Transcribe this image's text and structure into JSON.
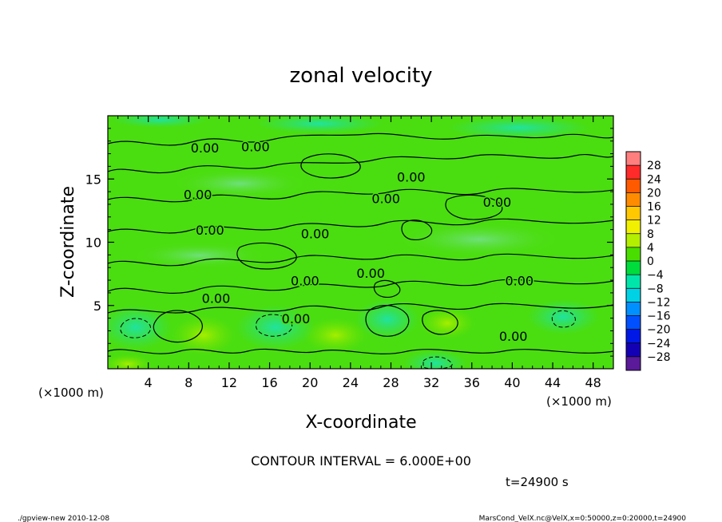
{
  "chart_data": {
    "type": "heatmap",
    "title": "zonal velocity",
    "xlabel": "X-coordinate",
    "ylabel": "Z-coordinate",
    "x_unit_label": "(×1000 m)",
    "y_unit_label": "(×1000 m)",
    "xlim": [
      0,
      50
    ],
    "ylim": [
      0,
      20
    ],
    "x_ticks": [
      4,
      8,
      12,
      16,
      20,
      24,
      28,
      32,
      36,
      40,
      44,
      48
    ],
    "y_ticks": [
      5,
      10,
      15
    ],
    "colorbar": {
      "labels": [
        28,
        24,
        20,
        16,
        12,
        8,
        4,
        0,
        -4,
        -8,
        -12,
        -16,
        -20,
        -24,
        -28
      ],
      "label_text": [
        "28",
        "24",
        "20",
        "16",
        "12",
        "8",
        "4",
        "0",
        "−4",
        "−8",
        "−12",
        "−16",
        "−20",
        "−24",
        "−28"
      ],
      "colors": [
        "#ff7f7f",
        "#ff2a2a",
        "#ff5a00",
        "#ff8c00",
        "#ffc800",
        "#f0f000",
        "#b4ee00",
        "#4ade00",
        "#00dc3c",
        "#00e6aa",
        "#00d2e6",
        "#0090ff",
        "#0050ff",
        "#0018e6",
        "#1400b4",
        "#5a1a9a"
      ]
    },
    "contour_interval_text": "CONTOUR INTERVAL = 6.000E+00",
    "contour_label": "0.00",
    "contour_labels": [
      {
        "x": 9.6,
        "z": 17.1
      },
      {
        "x": 14.6,
        "z": 17.2
      },
      {
        "x": 8.9,
        "z": 13.4
      },
      {
        "x": 10.1,
        "z": 10.6
      },
      {
        "x": 20.5,
        "z": 10.3
      },
      {
        "x": 30.0,
        "z": 14.8
      },
      {
        "x": 27.5,
        "z": 13.1
      },
      {
        "x": 38.5,
        "z": 12.8
      },
      {
        "x": 19.5,
        "z": 6.6
      },
      {
        "x": 26.0,
        "z": 7.2
      },
      {
        "x": 10.7,
        "z": 5.2
      },
      {
        "x": 18.6,
        "z": 3.6
      },
      {
        "x": 40.7,
        "z": 6.6
      },
      {
        "x": 40.1,
        "z": 2.2
      }
    ],
    "time_text": "t=24900 s"
  },
  "footer": {
    "left": "./gpview-new  2010-12-08",
    "right": "MarsCond_VelX.nc@VelX,x=0:50000,z=0:20000,t=24900"
  }
}
